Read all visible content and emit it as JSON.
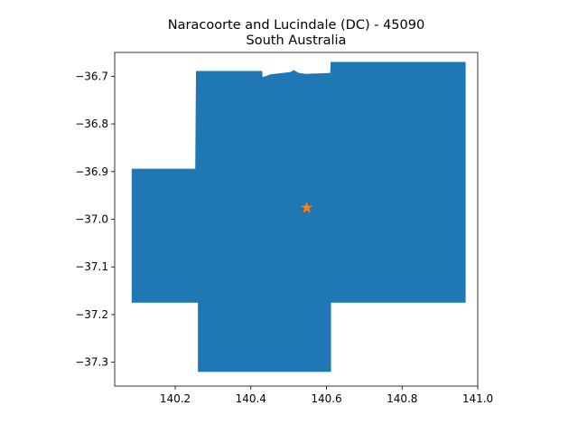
{
  "title": {
    "line1": "Naracoorte and Lucindale (DC) - 45090",
    "line2": "South Australia"
  },
  "chart_data": {
    "type": "map",
    "xlim": [
      140.04,
      141.0
    ],
    "ylim": [
      -37.35,
      -36.65
    ],
    "x_ticks": [
      {
        "value": 140.2,
        "label": "140.2"
      },
      {
        "value": 140.4,
        "label": "140.4"
      },
      {
        "value": 140.6,
        "label": "140.6"
      },
      {
        "value": 140.8,
        "label": "140.8"
      },
      {
        "value": 141.0,
        "label": "141.0"
      }
    ],
    "y_ticks": [
      {
        "value": -36.7,
        "label": "−36.7"
      },
      {
        "value": -36.8,
        "label": "−36.8"
      },
      {
        "value": -36.9,
        "label": "−36.9"
      },
      {
        "value": -37.0,
        "label": "−37.0"
      },
      {
        "value": -37.1,
        "label": "−37.1"
      },
      {
        "value": -37.2,
        "label": "−37.2"
      },
      {
        "value": -37.3,
        "label": "−37.3"
      }
    ],
    "region": {
      "fill_color": "#1f77b4",
      "boundary": [
        [
          140.085,
          -36.894
        ],
        [
          140.253,
          -36.894
        ],
        [
          140.255,
          -36.689
        ],
        [
          140.43,
          -36.689
        ],
        [
          140.431,
          -36.702
        ],
        [
          140.452,
          -36.696
        ],
        [
          140.485,
          -36.693
        ],
        [
          140.505,
          -36.691
        ],
        [
          140.513,
          -36.687
        ],
        [
          140.527,
          -36.693
        ],
        [
          140.545,
          -36.695
        ],
        [
          140.61,
          -36.693
        ],
        [
          140.611,
          -36.67
        ],
        [
          140.968,
          -36.67
        ],
        [
          140.968,
          -37.175
        ],
        [
          140.612,
          -37.175
        ],
        [
          140.612,
          -37.32
        ],
        [
          140.26,
          -37.32
        ],
        [
          140.26,
          -37.175
        ],
        [
          140.085,
          -37.175
        ]
      ]
    },
    "marker": {
      "type": "star",
      "color": "#ff7f0e",
      "x": 140.548,
      "y": -36.976
    }
  }
}
